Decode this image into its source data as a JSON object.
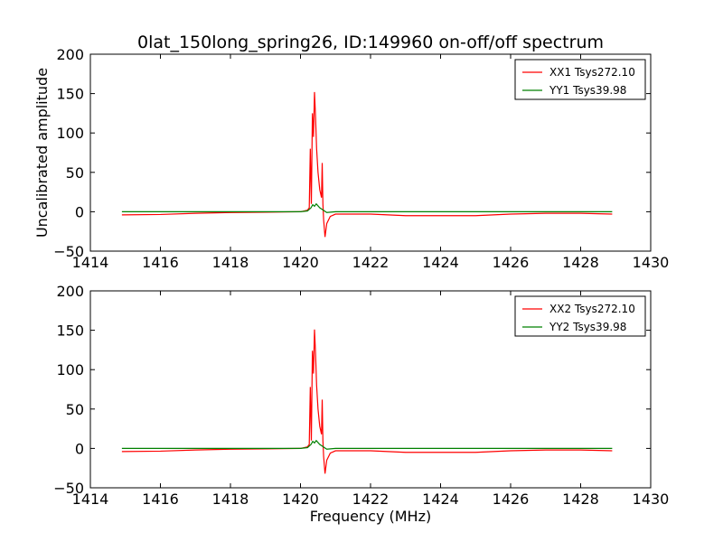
{
  "figure": {
    "title": "0lat_150long_spring26, ID:149960 on-off/off spectrum"
  },
  "colors": {
    "xx_series": "#ff0000",
    "yy_series": "#008000",
    "axes": "#000000",
    "background": "#ffffff"
  },
  "chart_data": [
    {
      "type": "line",
      "panel": "top",
      "title": "0lat_150long_spring26, ID:149960 on-off/off spectrum",
      "xlabel": "",
      "ylabel": "Uncalibrated amplitude",
      "xlim": [
        1414,
        1430
      ],
      "ylim": [
        -50,
        200
      ],
      "xticks": [
        1414,
        1416,
        1418,
        1420,
        1422,
        1424,
        1426,
        1428,
        1430
      ],
      "yticks": [
        -50,
        0,
        50,
        100,
        150,
        200
      ],
      "grid": false,
      "legend_position": "upper-right",
      "series": [
        {
          "name": "XX1 Tsys272.10",
          "color": "#ff0000",
          "x": [
            1414.9,
            1416.0,
            1417.0,
            1418.0,
            1419.0,
            1420.0,
            1420.2,
            1420.25,
            1420.28,
            1420.31,
            1420.34,
            1420.37,
            1420.4,
            1420.43,
            1420.46,
            1420.5,
            1420.55,
            1420.6,
            1420.62,
            1420.64,
            1420.66,
            1420.7,
            1420.75,
            1420.85,
            1421.0,
            1421.5,
            1422.0,
            1422.5,
            1423.0,
            1424.0,
            1425.0,
            1426.0,
            1427.0,
            1428.0,
            1428.9
          ],
          "y": [
            -4,
            -3.5,
            -2,
            -1,
            -0.5,
            0,
            2,
            5,
            80,
            10,
            125,
            95,
            152,
            120,
            80,
            50,
            28,
            18,
            62,
            10,
            -10,
            -32,
            -15,
            -6,
            -3,
            -3,
            -3,
            -4,
            -5,
            -5,
            -5,
            -3,
            -2,
            -2,
            -3
          ]
        },
        {
          "name": "YY1 Tsys39.98",
          "color": "#008000",
          "x": [
            1414.9,
            1416.0,
            1418.0,
            1420.0,
            1420.2,
            1420.3,
            1420.35,
            1420.4,
            1420.45,
            1420.55,
            1420.65,
            1420.75,
            1421.0,
            1422.0,
            1424.0,
            1426.0,
            1428.0,
            1428.9
          ],
          "y": [
            0,
            0,
            0,
            0,
            1,
            5,
            9,
            7,
            10,
            5,
            2,
            -1,
            0,
            0,
            0,
            0,
            0,
            0
          ]
        }
      ]
    },
    {
      "type": "line",
      "panel": "bottom",
      "title": "",
      "xlabel": "Frequency (MHz)",
      "ylabel": "",
      "xlim": [
        1414,
        1430
      ],
      "ylim": [
        -50,
        200
      ],
      "xticks": [
        1414,
        1416,
        1418,
        1420,
        1422,
        1424,
        1426,
        1428,
        1430
      ],
      "yticks": [
        -50,
        0,
        50,
        100,
        150,
        200
      ],
      "grid": false,
      "legend_position": "upper-right",
      "series": [
        {
          "name": "XX2 Tsys272.10",
          "color": "#ff0000",
          "x": [
            1414.9,
            1416.0,
            1417.0,
            1418.0,
            1419.0,
            1420.0,
            1420.2,
            1420.25,
            1420.28,
            1420.31,
            1420.34,
            1420.37,
            1420.4,
            1420.43,
            1420.46,
            1420.5,
            1420.55,
            1420.6,
            1420.62,
            1420.64,
            1420.66,
            1420.7,
            1420.75,
            1420.85,
            1421.0,
            1421.5,
            1422.0,
            1422.5,
            1423.0,
            1424.0,
            1425.0,
            1426.0,
            1427.0,
            1428.0,
            1428.9
          ],
          "y": [
            -4,
            -3.5,
            -2,
            -1,
            -0.5,
            0,
            2,
            5,
            78,
            10,
            124,
            95,
            151,
            120,
            80,
            50,
            28,
            18,
            62,
            10,
            -10,
            -32,
            -15,
            -6,
            -3,
            -3,
            -3,
            -4,
            -5,
            -5,
            -5,
            -3,
            -2,
            -2,
            -3
          ]
        },
        {
          "name": "YY2 Tsys39.98",
          "color": "#008000",
          "x": [
            1414.9,
            1416.0,
            1418.0,
            1420.0,
            1420.2,
            1420.3,
            1420.35,
            1420.4,
            1420.45,
            1420.55,
            1420.65,
            1420.75,
            1421.0,
            1422.0,
            1424.0,
            1426.0,
            1428.0,
            1428.9
          ],
          "y": [
            0,
            0,
            0,
            0,
            1,
            5,
            9,
            7,
            10,
            5,
            2,
            -1,
            0,
            0,
            0,
            0,
            0,
            0
          ]
        }
      ]
    }
  ]
}
